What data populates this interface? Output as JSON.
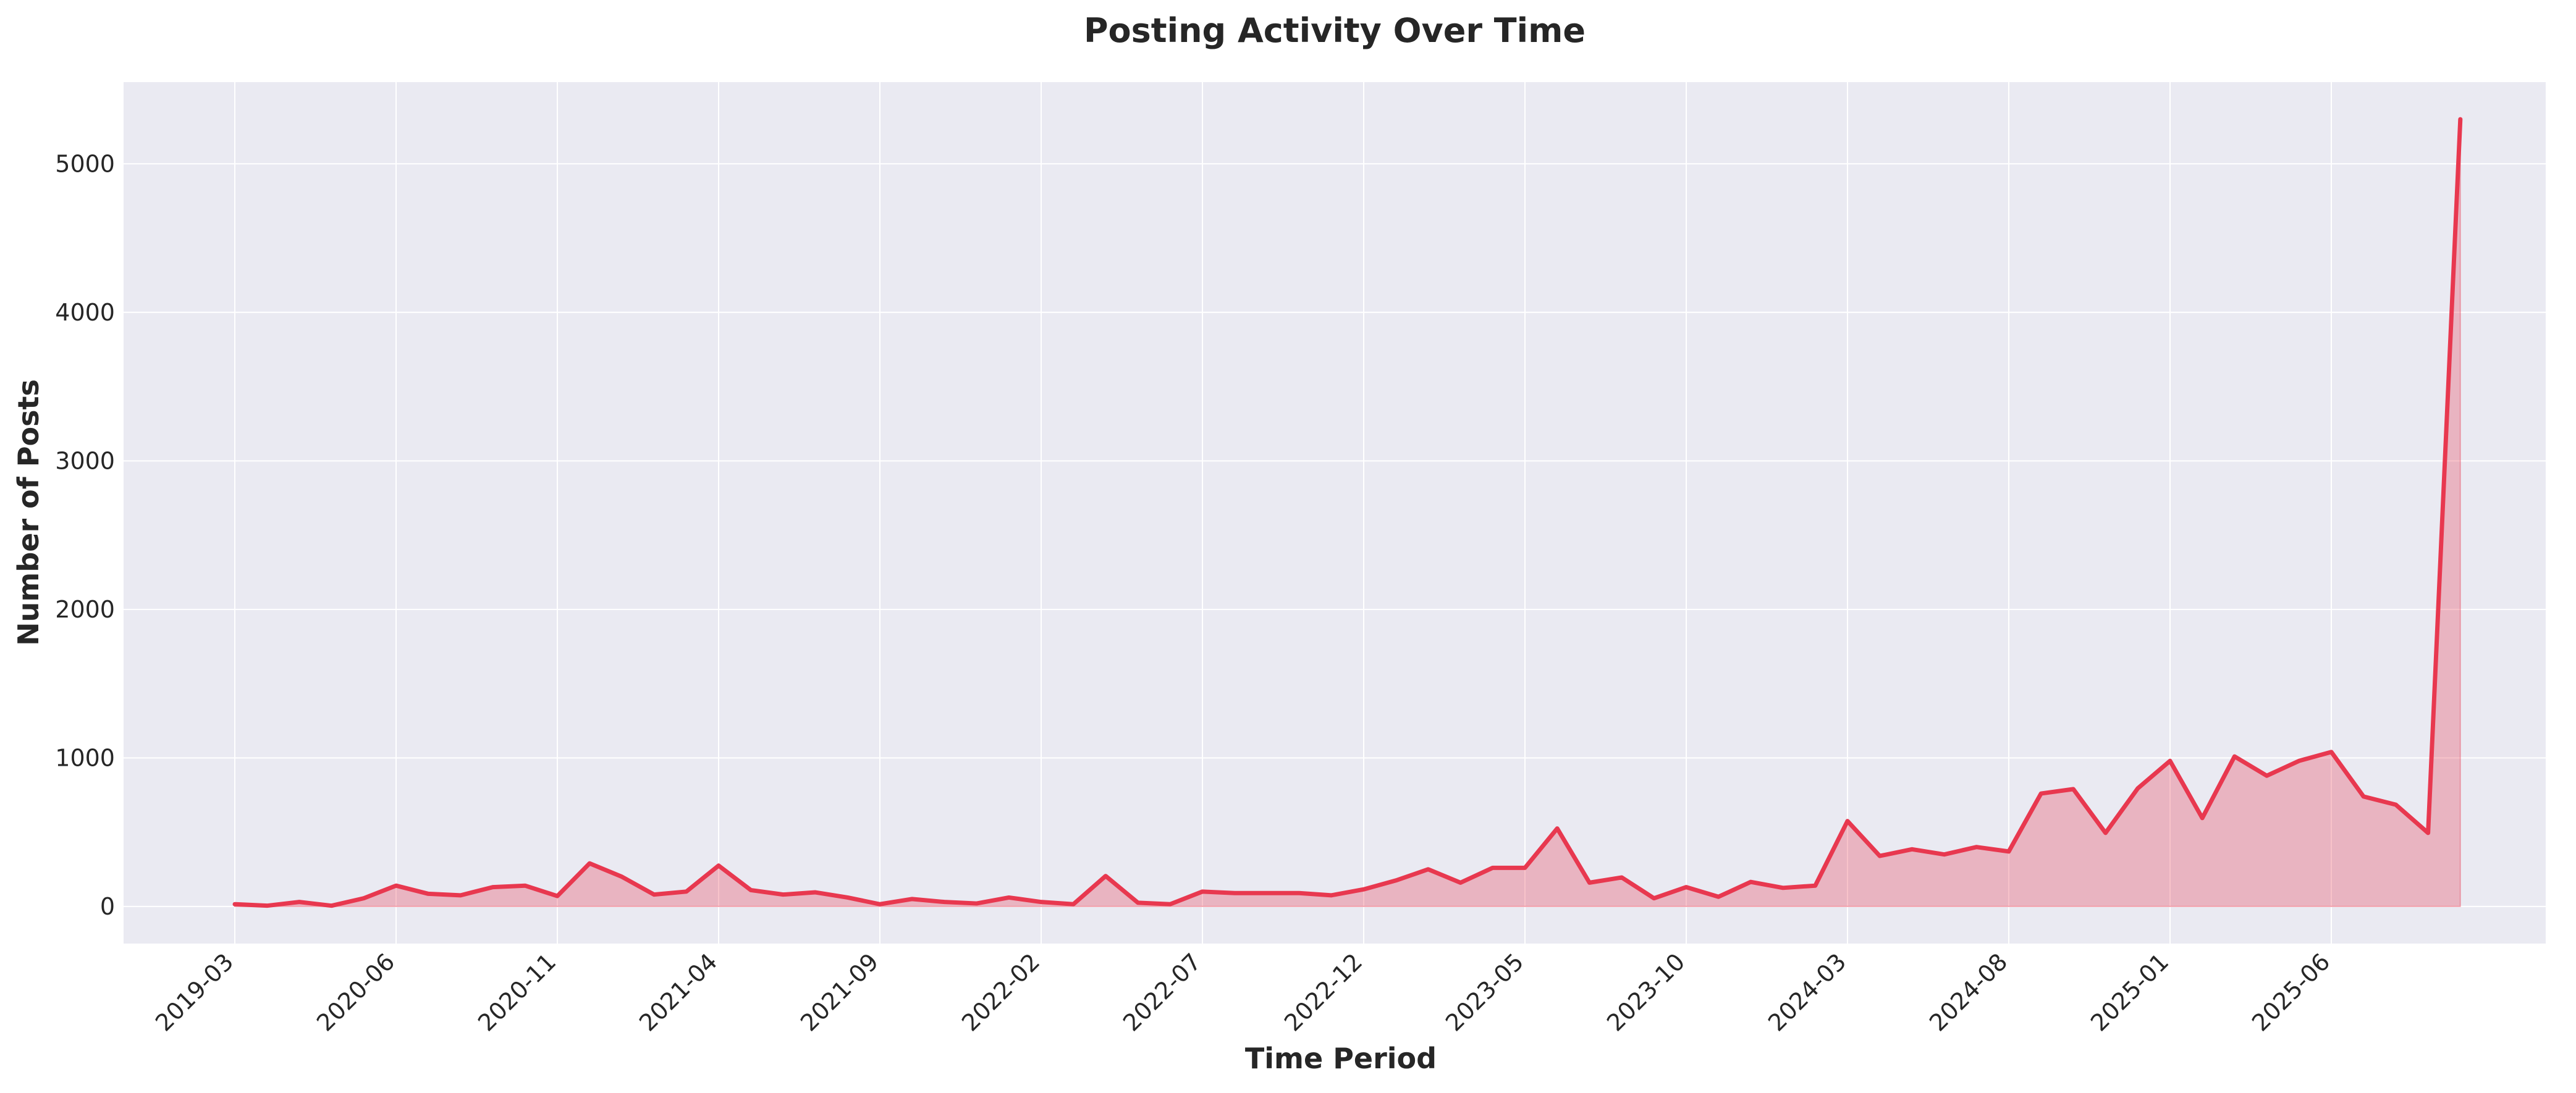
{
  "chart_data": {
    "type": "area",
    "title": "Posting Activity Over Time",
    "xlabel": "Time Period",
    "ylabel": "Number of Posts",
    "x_tick_labels": [
      "2019-03",
      "2020-06",
      "2020-11",
      "2021-04",
      "2021-09",
      "2022-02",
      "2022-07",
      "2022-12",
      "2023-05",
      "2023-10",
      "2024-03",
      "2024-08",
      "2025-01",
      "2025-06"
    ],
    "y_ticks": [
      0,
      1000,
      2000,
      3000,
      4000,
      5000
    ],
    "ylim": [
      -250,
      5550
    ],
    "grid": true,
    "colors": {
      "line": "#e8384f",
      "fill": "#e8384f",
      "plot_background": "#eaeaf2",
      "grid": "#ffffff"
    },
    "series": [
      {
        "values": [
          15,
          5,
          30,
          5,
          55,
          140,
          85,
          75,
          130,
          140,
          70,
          290,
          200,
          80,
          100,
          275,
          110,
          80,
          95,
          60,
          15,
          50,
          30,
          20,
          60,
          30,
          15,
          205,
          25,
          15,
          100,
          90,
          90,
          90,
          75,
          115,
          175,
          250,
          160,
          260,
          260,
          525,
          160,
          195,
          55,
          130,
          65,
          165,
          125,
          140,
          575,
          340,
          385,
          350,
          400,
          370,
          760,
          790,
          495,
          795,
          980,
          595,
          1010,
          880,
          980,
          1040,
          740,
          685,
          495,
          5300
        ]
      }
    ]
  }
}
